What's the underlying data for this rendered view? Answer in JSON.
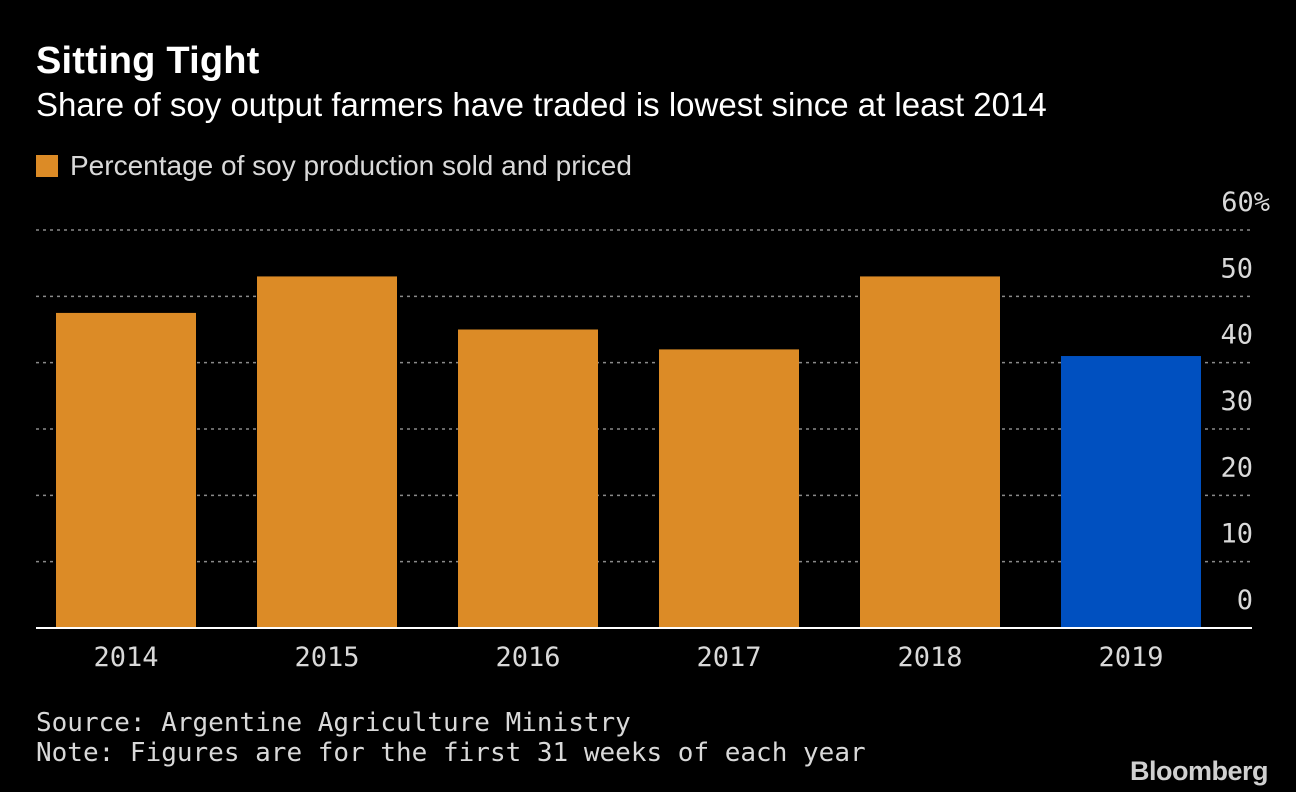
{
  "chart_data": {
    "type": "bar",
    "title": "Sitting Tight",
    "subtitle": "Share of soy output farmers have traded is lowest since at least 2014",
    "legend": {
      "label": "Percentage of soy production sold and priced",
      "color": "#dc8b26",
      "placement": "top-left"
    },
    "categories": [
      "2014",
      "2015",
      "2016",
      "2017",
      "2018",
      "2019"
    ],
    "series": [
      {
        "name": "Percentage of soy production sold and priced",
        "values": [
          47.5,
          53,
          45,
          42,
          53,
          41
        ]
      }
    ],
    "bar_colors": [
      "#dc8b26",
      "#dc8b26",
      "#dc8b26",
      "#dc8b26",
      "#dc8b26",
      "#0050c0"
    ],
    "ylim": [
      0,
      60
    ],
    "y_ticks": [
      0,
      10,
      20,
      30,
      40,
      50,
      60
    ],
    "y_tick_labels": [
      "0",
      "10",
      "20",
      "30",
      "40",
      "50",
      "60%"
    ],
    "y_axis_position": "right",
    "grid": true,
    "xlabel": "",
    "ylabel": ""
  },
  "footer": {
    "source": "Source: Argentine Agriculture Ministry",
    "note": "Note: Figures are for the first 31 weeks of each year",
    "brand": "Bloomberg"
  },
  "colors": {
    "background": "#000000",
    "grid": "#8a8a8a",
    "axis": "#ffffff",
    "tick_text": "#d9d9d9"
  }
}
